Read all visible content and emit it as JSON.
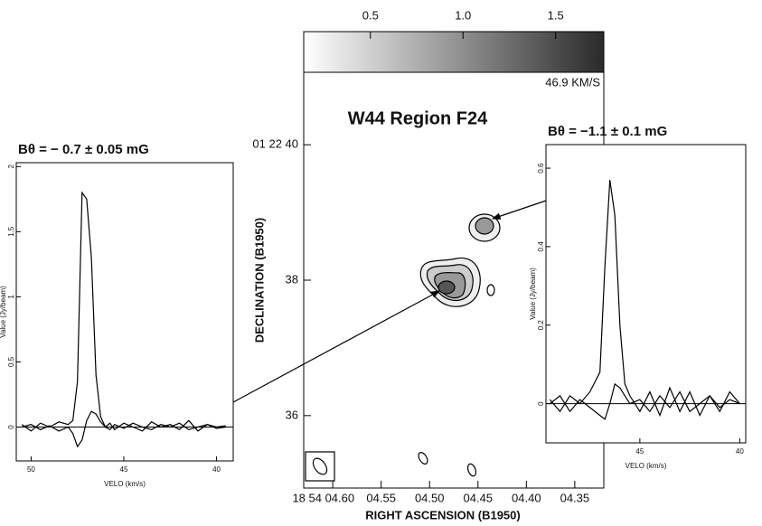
{
  "chart_data": [
    {
      "type": "line",
      "title": "Bθ = − 0.7 ± 0.05 mG",
      "x_label": "VELO (km/s)",
      "y_label": "Value (Jy/beam)",
      "x": [
        50.5,
        50,
        49.5,
        49,
        48.5,
        48,
        47.75,
        47.5,
        47.25,
        47,
        46.75,
        46.5,
        46.25,
        46,
        45.75,
        45.5,
        45,
        44.5,
        44,
        43.5,
        43,
        42.5,
        42,
        41.5,
        41,
        40.5,
        40,
        39.5
      ],
      "series": [
        {
          "color": "#000000",
          "values": [
            0.02,
            -0.03,
            0.03,
            0.0,
            0.04,
            0.02,
            0.05,
            0.35,
            1.8,
            1.75,
            1.3,
            0.4,
            0.08,
            0.0,
            0.03,
            -0.02,
            0.03,
            0.0,
            -0.03,
            0.04,
            0.0,
            0.02,
            -0.02,
            0.05,
            -0.03,
            0.02,
            0.0,
            0.01
          ]
        },
        {
          "color": "#000000",
          "values": [
            0.0,
            0.02,
            -0.02,
            0.01,
            -0.03,
            0.0,
            -0.05,
            -0.15,
            -0.1,
            0.05,
            0.12,
            0.1,
            0.04,
            0.0,
            -0.02,
            0.02,
            -0.01,
            0.03,
            0.0,
            -0.02,
            0.02,
            0.0,
            0.03,
            -0.02,
            0.0,
            0.02,
            -0.01,
            0.0
          ]
        }
      ],
      "xlim": [
        50.8,
        39.1
      ],
      "xticks": [
        50,
        45,
        40
      ],
      "ylim": [
        -0.26,
        2.03
      ],
      "yticks": [
        0,
        0.5,
        1,
        1.5,
        2
      ]
    },
    {
      "type": "contour",
      "title": "W44 Region F24",
      "annotation": "46.9 KM/S",
      "x_label": "RIGHT ASCENSION (B1950)",
      "y_label": "DECLINATION (B1950)",
      "xlim": [
        4.63,
        4.32
      ],
      "xticks": [
        {
          "value": 4.6,
          "label": "18 54 04.60"
        },
        {
          "value": 4.55,
          "label": "04.55"
        },
        {
          "value": 4.5,
          "label": "04.50"
        },
        {
          "value": 4.45,
          "label": "04.45"
        },
        {
          "value": 4.4,
          "label": "04.40"
        },
        {
          "value": 4.35,
          "label": "04.35"
        }
      ],
      "ylim": [
        34.93,
        41.07
      ],
      "yticks": [
        {
          "value": 40,
          "label": "01 22 40"
        },
        38,
        36
      ],
      "colorbar_lim": [
        0.14,
        1.76
      ],
      "colorbar_ticks": [
        0.5,
        {
          "value": 1,
          "label": "1.0"
        },
        1.5
      ]
    },
    {
      "type": "line",
      "title": "Bθ = −1.1 ± 0.1 mG",
      "x_label": "VELO (km/s)",
      "y_label": "Value (Jy/beam)",
      "x": [
        49.5,
        49,
        48.5,
        48,
        47.5,
        47,
        46.75,
        46.5,
        46.25,
        46,
        45.75,
        45.5,
        45,
        44.5,
        44,
        43.5,
        43,
        42.5,
        42,
        41.5,
        41,
        40.5,
        40
      ],
      "series": [
        {
          "color": "#000000",
          "values": [
            0.01,
            -0.02,
            0.02,
            0.0,
            0.03,
            0.08,
            0.35,
            0.57,
            0.48,
            0.2,
            0.05,
            0.02,
            -0.02,
            0.03,
            -0.03,
            0.04,
            -0.02,
            0.03,
            -0.03,
            0.02,
            -0.02,
            0.03,
            0.0
          ]
        },
        {
          "color": "#000000",
          "values": [
            0.0,
            0.02,
            -0.02,
            0.01,
            -0.01,
            -0.03,
            -0.04,
            0.0,
            0.05,
            0.04,
            0.02,
            0.0,
            0.01,
            -0.02,
            0.02,
            -0.01,
            0.03,
            -0.02,
            0.0,
            0.02,
            -0.01,
            0.01,
            0.0
          ]
        }
      ],
      "xlim": [
        49.7,
        39.7
      ],
      "xticks": [
        45,
        40
      ],
      "ylim": [
        -0.1,
        0.66
      ],
      "yticks": [
        0,
        0.2,
        0.4,
        0.6
      ]
    }
  ]
}
